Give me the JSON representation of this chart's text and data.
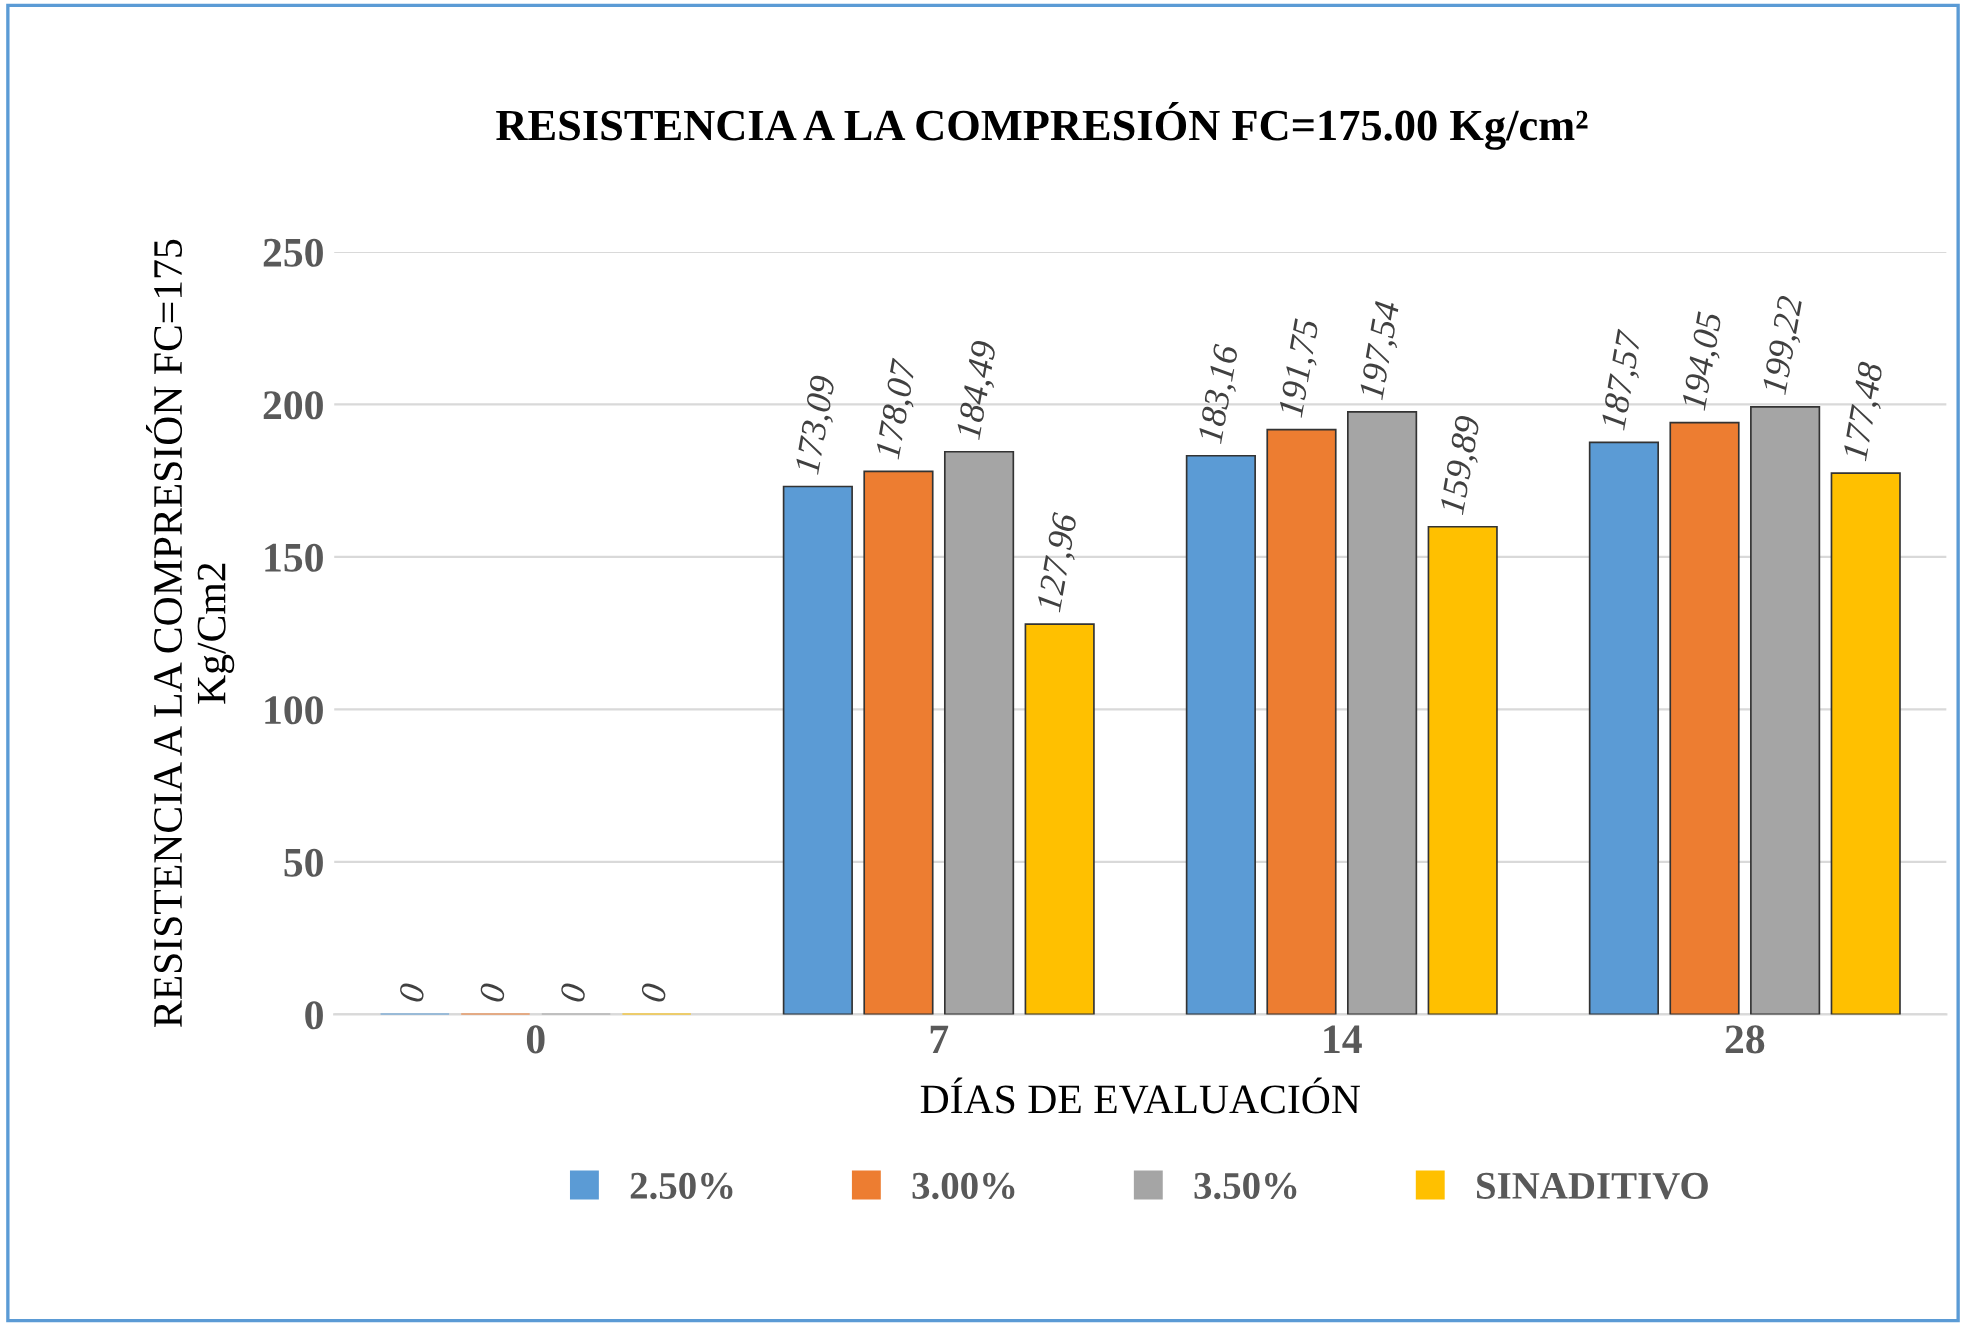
{
  "chart_data": {
    "type": "bar",
    "title": "RESISTENCIA A LA COMPRESIÓN FC=175.00 Kg/cm²",
    "xlabel": "DÍAS DE EVALUACIÓN",
    "ylabel": "RESISTENCIA A LA COMPRESIÓN FC=175\nKg/Cm2",
    "categories": [
      "0",
      "7",
      "14",
      "28"
    ],
    "series": [
      {
        "name": "2.50%",
        "color": "#5b9bd5",
        "values": [
          0,
          173.09,
          183.16,
          187.57
        ],
        "value_labels": [
          "0",
          "173,09",
          "183,16",
          "187,57"
        ]
      },
      {
        "name": "3.00%",
        "color": "#ed7d31",
        "values": [
          0,
          178.07,
          191.75,
          194.05
        ],
        "value_labels": [
          "0",
          "178,07",
          "191,75",
          "194,05"
        ]
      },
      {
        "name": "3.50%",
        "color": "#a5a5a5",
        "values": [
          0,
          184.49,
          197.54,
          199.22
        ],
        "value_labels": [
          "0",
          "184,49",
          "197,54",
          "199,22"
        ]
      },
      {
        "name": "SINADITIVO",
        "color": "#ffc000",
        "values": [
          0,
          127.96,
          159.89,
          177.48
        ],
        "value_labels": [
          "0",
          "127,96",
          "159,89",
          "177,48"
        ]
      }
    ],
    "ylim": [
      0,
      250
    ],
    "yticks": [
      0,
      50,
      100,
      150,
      200,
      250
    ],
    "grid": "y",
    "legend": "bottom"
  }
}
